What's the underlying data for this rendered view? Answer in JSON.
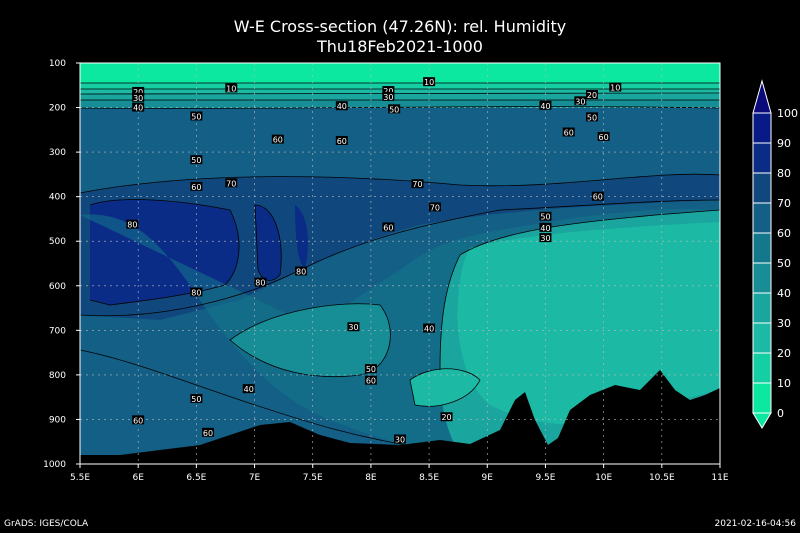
{
  "title": "W-E Cross-section (47.26N): rel. Humidity",
  "subtitle": "Thu18Feb2021-1000",
  "footer_left": "GrADS: IGES/COLA",
  "footer_right": "2021-02-16-04:56",
  "colors": {
    "c0": "#0ce8a0",
    "c10": "#15cfa4",
    "c20": "#1cbaa4",
    "c30": "#1aa59e",
    "c40": "#178e96",
    "c50": "#14788c",
    "c60": "#135f86",
    "c70": "#10487e",
    "c80": "#0b2c86",
    "c90": "#071a86",
    "c100": "#0a0a7a",
    "terrain": "#000000"
  },
  "chart_data": {
    "type": "heatmap",
    "title": "W-E Cross-section (47.26N): rel. Humidity",
    "subtitle": "Thu18Feb2021-1000",
    "x_ticks": [
      "5.5E",
      "6E",
      "6.5E",
      "7E",
      "7.5E",
      "8E",
      "8.5E",
      "9E",
      "9.5E",
      "10E",
      "10.5E",
      "11E"
    ],
    "x_range": [
      5.5,
      11.0
    ],
    "y_ticks": [
      "100",
      "200",
      "300",
      "400",
      "500",
      "600",
      "700",
      "800",
      "900",
      "1000"
    ],
    "y_range": [
      100,
      1000
    ],
    "grid": true,
    "colorbar_levels": [
      "100",
      "90",
      "80",
      "70",
      "60",
      "50",
      "40",
      "30",
      "20",
      "10",
      "0"
    ],
    "contour_labels": [
      {
        "text": "10",
        "x": 6.8,
        "y": 157
      },
      {
        "text": "20",
        "x": 6.0,
        "y": 165
      },
      {
        "text": "30",
        "x": 6.0,
        "y": 178
      },
      {
        "text": "40",
        "x": 6.0,
        "y": 200
      },
      {
        "text": "50",
        "x": 6.5,
        "y": 220
      },
      {
        "text": "10",
        "x": 8.5,
        "y": 143
      },
      {
        "text": "20",
        "x": 8.15,
        "y": 163
      },
      {
        "text": "30",
        "x": 8.15,
        "y": 176
      },
      {
        "text": "40",
        "x": 7.75,
        "y": 197
      },
      {
        "text": "50",
        "x": 8.2,
        "y": 204
      },
      {
        "text": "40",
        "x": 9.5,
        "y": 196
      },
      {
        "text": "30",
        "x": 9.8,
        "y": 186
      },
      {
        "text": "20",
        "x": 9.9,
        "y": 172
      },
      {
        "text": "10",
        "x": 10.1,
        "y": 155
      },
      {
        "text": "50",
        "x": 9.9,
        "y": 222
      },
      {
        "text": "60",
        "x": 9.7,
        "y": 256
      },
      {
        "text": "60",
        "x": 10.0,
        "y": 266
      },
      {
        "text": "60",
        "x": 7.2,
        "y": 272
      },
      {
        "text": "60",
        "x": 7.75,
        "y": 275
      },
      {
        "text": "50",
        "x": 6.5,
        "y": 318
      },
      {
        "text": "60",
        "x": 6.5,
        "y": 378
      },
      {
        "text": "70",
        "x": 6.8,
        "y": 370
      },
      {
        "text": "70",
        "x": 8.4,
        "y": 372
      },
      {
        "text": "60",
        "x": 9.95,
        "y": 400
      },
      {
        "text": "70",
        "x": 8.55,
        "y": 424
      },
      {
        "text": "50",
        "x": 9.5,
        "y": 445
      },
      {
        "text": "40",
        "x": 9.5,
        "y": 470
      },
      {
        "text": "30",
        "x": 9.5,
        "y": 493
      },
      {
        "text": "80",
        "x": 5.95,
        "y": 463
      },
      {
        "text": "60",
        "x": 8.15,
        "y": 469
      },
      {
        "text": "80",
        "x": 7.4,
        "y": 568
      },
      {
        "text": "80",
        "x": 7.05,
        "y": 593
      },
      {
        "text": "80",
        "x": 6.5,
        "y": 615
      },
      {
        "text": "30",
        "x": 7.85,
        "y": 693
      },
      {
        "text": "40",
        "x": 8.5,
        "y": 696
      },
      {
        "text": "50",
        "x": 8.0,
        "y": 787
      },
      {
        "text": "60",
        "x": 8.0,
        "y": 813
      },
      {
        "text": "40",
        "x": 6.95,
        "y": 832
      },
      {
        "text": "50",
        "x": 6.5,
        "y": 854
      },
      {
        "text": "60",
        "x": 6.0,
        "y": 902
      },
      {
        "text": "60",
        "x": 6.6,
        "y": 930
      },
      {
        "text": "20",
        "x": 8.65,
        "y": 895
      },
      {
        "text": "30",
        "x": 8.25,
        "y": 945
      }
    ]
  }
}
